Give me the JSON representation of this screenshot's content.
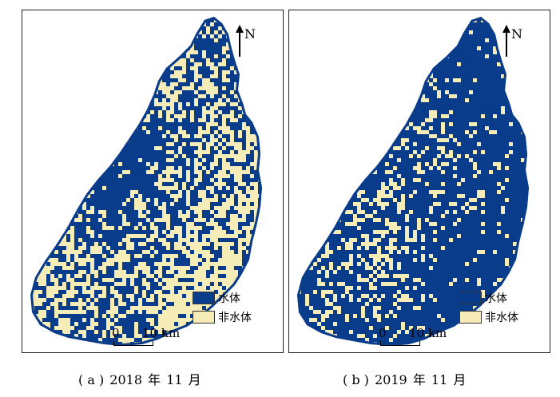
{
  "colors": {
    "water": "#0a3c8c",
    "nonwater": "#f5ecb8",
    "frame": "#222222"
  },
  "panels": [
    {
      "id": "a",
      "north_label": "N",
      "legend": [
        {
          "label": "水体",
          "class": "water"
        },
        {
          "label": "非水体",
          "class": "nonwater"
        }
      ],
      "scale": {
        "zero": "0",
        "ten": "10 km"
      },
      "caption": {
        "prefix": "( a )",
        "year": "2018",
        "year_unit": "年",
        "month": "11",
        "month_unit": "月"
      },
      "water_fraction": 0.4
    },
    {
      "id": "b",
      "north_label": "N",
      "legend": [
        {
          "label": "水体",
          "class": "water"
        },
        {
          "label": "非水体",
          "class": "nonwater"
        }
      ],
      "scale": {
        "zero": "0",
        "ten": "10 km"
      },
      "caption": {
        "prefix": "( b )",
        "year": "2019",
        "year_unit": "年",
        "month": "11",
        "month_unit": "月"
      },
      "water_fraction": 0.7
    }
  ]
}
